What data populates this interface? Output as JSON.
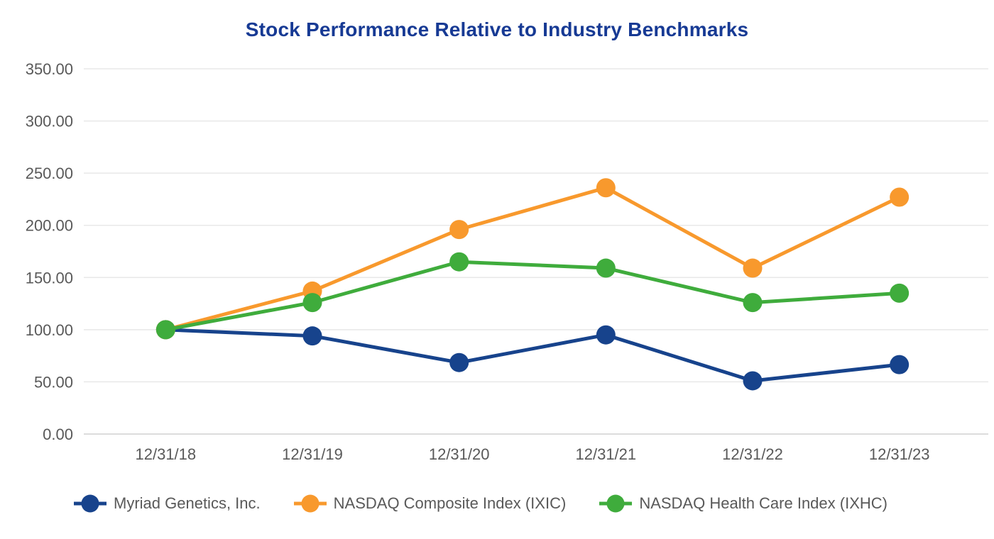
{
  "chart_data": {
    "type": "line",
    "title": "Stock Performance Relative to Industry Benchmarks",
    "categories": [
      "12/31/18",
      "12/31/19",
      "12/31/20",
      "12/31/21",
      "12/31/22",
      "12/31/23"
    ],
    "series": [
      {
        "name": "Myriad Genetics, Inc.",
        "color": "#17438C",
        "values": [
          100,
          94,
          68.5,
          95,
          51,
          66.5
        ]
      },
      {
        "name": "NASDAQ Composite Index (IXIC)",
        "color": "#F8992D",
        "values": [
          100,
          137,
          196,
          236,
          159,
          227
        ]
      },
      {
        "name": "NASDAQ Health Care Index (IXHC)",
        "color": "#3FAC3C",
        "values": [
          100,
          126,
          165,
          159,
          126,
          135
        ]
      }
    ],
    "ylim": [
      0,
      350
    ],
    "ytick_step": 50,
    "ytick_labels": [
      "0.00",
      "50.00",
      "100.00",
      "150.00",
      "200.00",
      "250.00",
      "300.00",
      "350.00"
    ],
    "grid": "horizontal-only",
    "legend_position": "bottom",
    "marker": "circle"
  },
  "colors": {
    "title": "#173A94",
    "axis_text": "#595959",
    "gridline": "#E8E8E8",
    "axis_line": "#DCDCDC",
    "background": "#FFFFFF"
  }
}
